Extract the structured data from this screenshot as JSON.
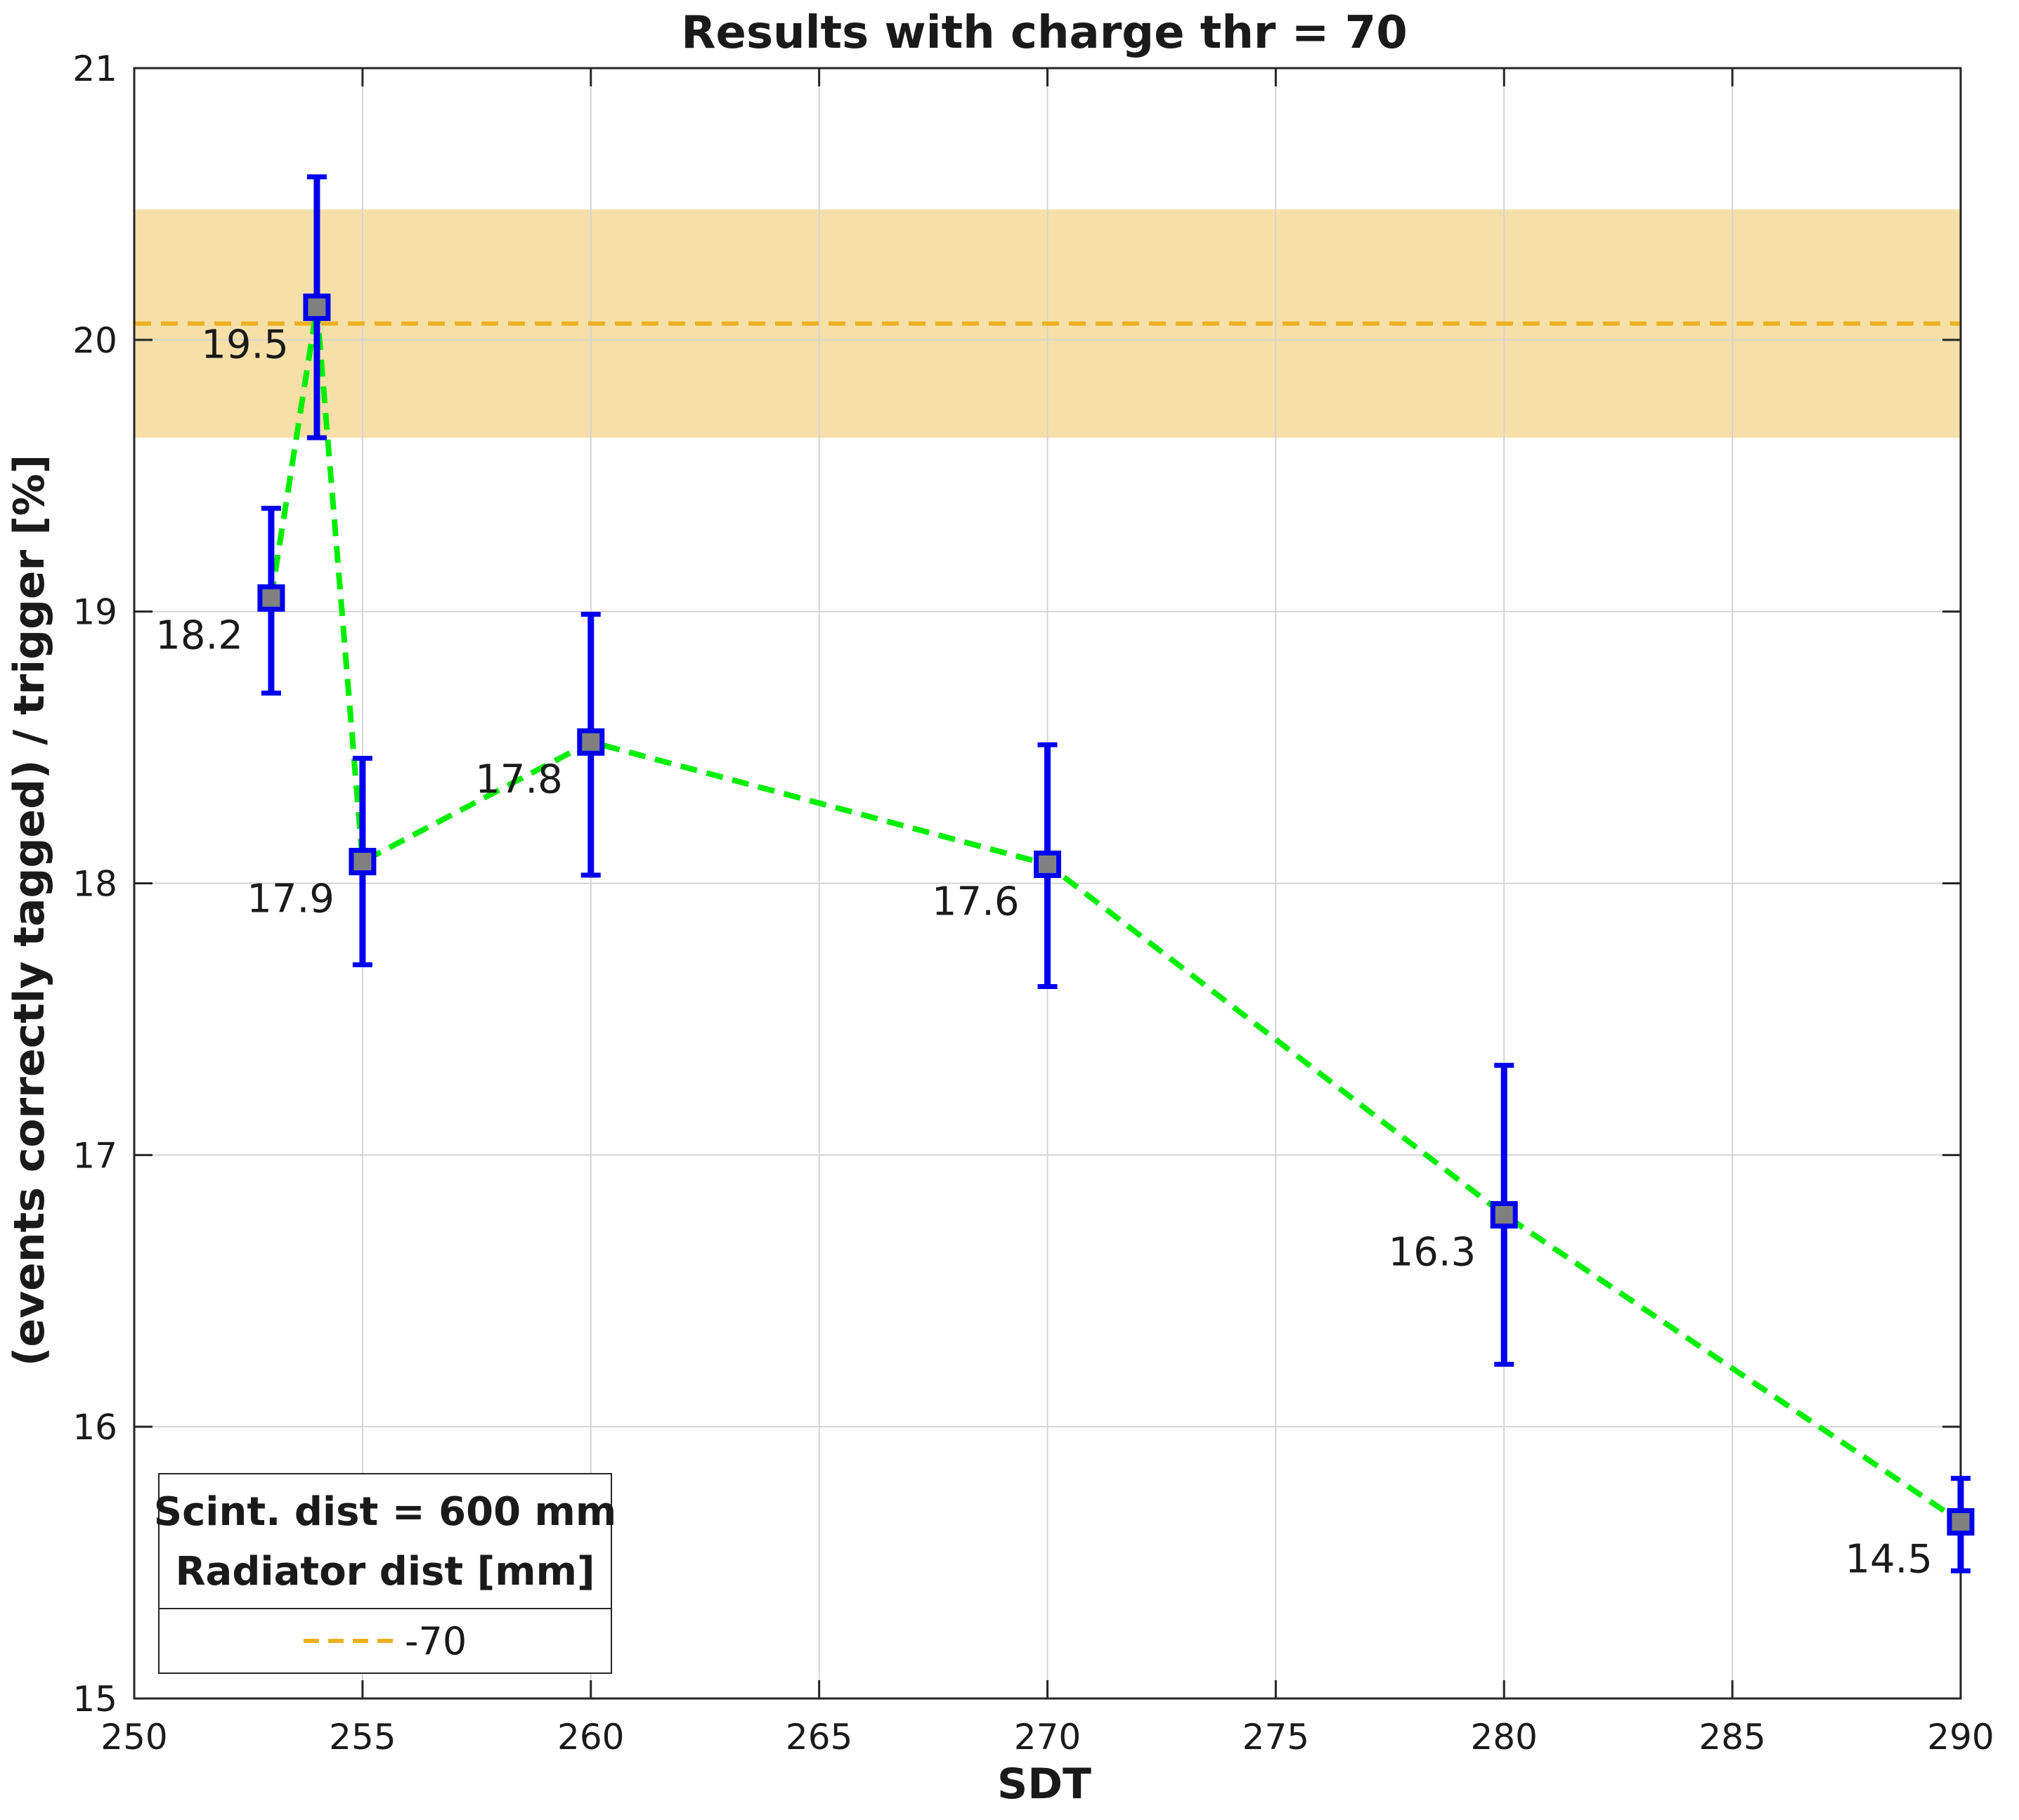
{
  "chart_data": {
    "type": "line",
    "title": "Results with charge thr = 70",
    "xlabel": "SDT",
    "ylabel": "(events correctly tagged) / trigger [%]",
    "xlim": [
      250,
      290
    ],
    "ylim": [
      15,
      21
    ],
    "xticks": [
      250,
      255,
      260,
      265,
      270,
      275,
      280,
      285,
      290
    ],
    "yticks": [
      15,
      16,
      17,
      18,
      19,
      20,
      21
    ],
    "grid": true,
    "series": [
      {
        "x": [
          253,
          254,
          255,
          260,
          270,
          280,
          290
        ],
        "y": [
          19.05,
          20.12,
          18.08,
          18.52,
          18.07,
          16.78,
          15.65
        ],
        "err_low": [
          18.7,
          19.64,
          17.7,
          18.03,
          17.62,
          16.23,
          15.47
        ],
        "err_high": [
          19.38,
          20.6,
          18.46,
          18.99,
          18.51,
          17.33,
          15.81
        ],
        "labels": [
          "18.2",
          "19.5",
          "17.9",
          "17.8",
          "17.6",
          "16.3",
          "14.5"
        ],
        "line_color": "#00ee00",
        "error_color": "#0000ee",
        "marker_color": "#808080"
      }
    ],
    "reference": {
      "name": "-70",
      "value": 20.06,
      "band": [
        19.64,
        20.48
      ],
      "line_color": "#edb120",
      "band_color": "#f7e0a8"
    },
    "legend": {
      "position": "bottom-left",
      "title_lines": [
        "Scint. dist = 600 mm",
        "Radiator dist [mm]"
      ],
      "entries": [
        "-70"
      ]
    }
  }
}
